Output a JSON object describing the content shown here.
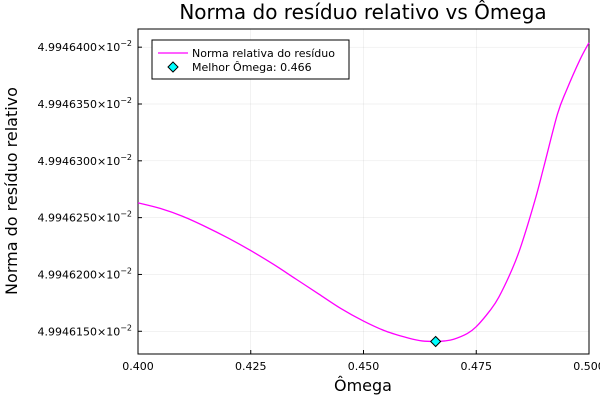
{
  "chart_data": {
    "type": "line",
    "title": "Norma do resíduo relativo vs Ômega",
    "xlabel": "Ômega",
    "ylabel": "Norma do resíduo relativo",
    "xlim": [
      0.4,
      0.5
    ],
    "ylim": [
      0.04994613,
      0.049946416
    ],
    "grid": true,
    "legend_position": "top-left",
    "x_ticks": [
      {
        "value": 0.4,
        "label": "0.400"
      },
      {
        "value": 0.425,
        "label": "0.425"
      },
      {
        "value": 0.45,
        "label": "0.450"
      },
      {
        "value": 0.475,
        "label": "0.475"
      },
      {
        "value": 0.5,
        "label": "0.500"
      }
    ],
    "y_ticks": [
      {
        "value": 0.04994615,
        "mantissa": "4.9946150",
        "exp": "−2"
      },
      {
        "value": 0.0499462,
        "mantissa": "4.9946200",
        "exp": "−2"
      },
      {
        "value": 0.04994625,
        "mantissa": "4.9946250",
        "exp": "−2"
      },
      {
        "value": 0.0499463,
        "mantissa": "4.9946300",
        "exp": "−2"
      },
      {
        "value": 0.04994635,
        "mantissa": "4.9946350",
        "exp": "−2"
      },
      {
        "value": 0.0499464,
        "mantissa": "4.9946400",
        "exp": "−2"
      }
    ],
    "tick_base": "×10",
    "series": [
      {
        "name": "Norma relativa do resíduo",
        "color": "#ff00ff",
        "style": "line",
        "x": [
          0.4,
          0.405,
          0.41,
          0.415,
          0.42,
          0.425,
          0.43,
          0.435,
          0.44,
          0.445,
          0.45,
          0.455,
          0.46,
          0.463,
          0.466,
          0.468,
          0.47,
          0.473,
          0.475,
          0.478,
          0.48,
          0.483,
          0.485,
          0.488,
          0.49,
          0.493,
          0.495,
          0.498,
          0.5
        ],
        "y": [
          0.049946263,
          0.049946258,
          0.049946251,
          0.049946242,
          0.049946232,
          0.049946221,
          0.049946209,
          0.049946196,
          0.049946183,
          0.04994617,
          0.049946159,
          0.04994615,
          0.049946144,
          0.0499461415,
          0.049946141,
          0.0499461415,
          0.049946143,
          0.049946148,
          0.049946154,
          0.049946168,
          0.04994618,
          0.049946205,
          0.049946226,
          0.049946265,
          0.049946295,
          0.049946341,
          0.049946362,
          0.049946389,
          0.049946404
        ]
      },
      {
        "name": "Melhor Ômega: 0.466",
        "color": "#00ffff",
        "style": "marker",
        "marker": "diamond",
        "x": [
          0.466
        ],
        "y": [
          0.049946141
        ]
      }
    ]
  }
}
